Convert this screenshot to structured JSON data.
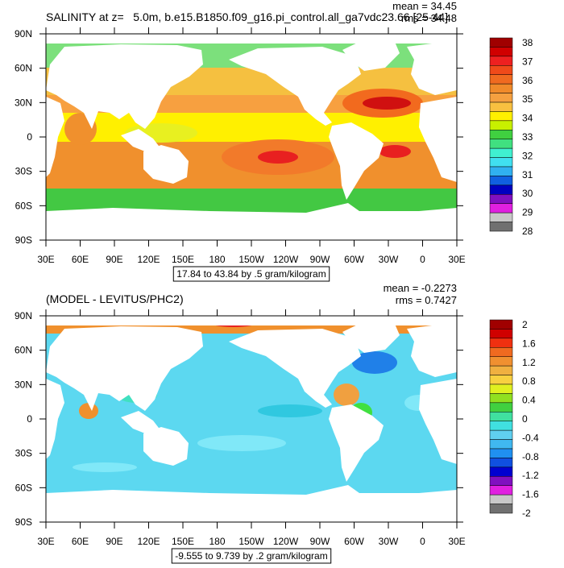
{
  "panels": [
    {
      "title": "SALINITY at z=   5.0m, b.e15.B1850.f09_g16.pi_control.all_ga7vdc23.66 [25-44]",
      "stats": [
        "mean = 34.45",
        "rms = 34.48"
      ],
      "lat_labels": [
        "90N",
        "60N",
        "30N",
        "0",
        "30S",
        "60S",
        "90S"
      ],
      "lon_labels": [
        "30E",
        "60E",
        "90E",
        "120E",
        "150E",
        "180",
        "150W",
        "120W",
        "90W",
        "60W",
        "30W",
        "0",
        "30E"
      ],
      "contour_info": "17.84 to 43.84 by .5 gram/kilogram",
      "colorbar_labels": [
        "38",
        "37",
        "36",
        "35",
        "34",
        "33",
        "32",
        "31",
        "30",
        "29",
        "28"
      ]
    },
    {
      "title": "(MODEL - LEVITUS/PHC2)",
      "stats": [
        "mean = -0.2273",
        "rms = 0.7427"
      ],
      "lat_labels": [
        "90N",
        "60N",
        "30N",
        "0",
        "30S",
        "60S",
        "90S"
      ],
      "lon_labels": [
        "30E",
        "60E",
        "90E",
        "120E",
        "150E",
        "180",
        "150W",
        "120W",
        "90W",
        "60W",
        "30W",
        "0",
        "30E"
      ],
      "contour_info": "-9.555 to 9.739 by .2 gram/kilogram",
      "colorbar_labels": [
        "2",
        "1.6",
        "1.2",
        "0.8",
        "0.4",
        "0",
        "-0.4",
        "-0.8",
        "-1.2",
        "-1.6",
        "-2"
      ]
    }
  ]
}
